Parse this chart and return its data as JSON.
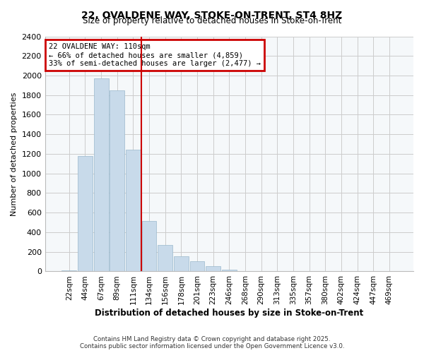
{
  "title": "22, OVALDENE WAY, STOKE-ON-TRENT, ST4 8HZ",
  "subtitle": "Size of property relative to detached houses in Stoke-on-Trent",
  "xlabel": "Distribution of detached houses by size in Stoke-on-Trent",
  "ylabel": "Number of detached properties",
  "bar_color": "#c8daea",
  "bar_edge_color": "#9ab8cc",
  "categories": [
    "22sqm",
    "44sqm",
    "67sqm",
    "89sqm",
    "111sqm",
    "134sqm",
    "156sqm",
    "178sqm",
    "201sqm",
    "223sqm",
    "246sqm",
    "268sqm",
    "290sqm",
    "313sqm",
    "335sqm",
    "357sqm",
    "380sqm",
    "402sqm",
    "424sqm",
    "447sqm",
    "469sqm"
  ],
  "values": [
    10,
    1175,
    1970,
    1850,
    1245,
    515,
    270,
    155,
    105,
    55,
    15,
    5,
    3,
    2,
    1,
    1,
    1,
    0,
    0,
    0,
    0
  ],
  "property_label": "22 OVALDENE WAY: 110sqm",
  "annotation_line1": "← 66% of detached houses are smaller (4,859)",
  "annotation_line2": "33% of semi-detached houses are larger (2,477) →",
  "vline_position": 4.5,
  "ylim": [
    0,
    2400
  ],
  "yticks": [
    0,
    200,
    400,
    600,
    800,
    1000,
    1200,
    1400,
    1600,
    1800,
    2000,
    2200,
    2400
  ],
  "footnote1": "Contains HM Land Registry data © Crown copyright and database right 2025.",
  "footnote2": "Contains public sector information licensed under the Open Government Licence v3.0.",
  "grid_color": "#cccccc",
  "vline_color": "#cc0000",
  "annotation_box_color": "#cc0000",
  "bg_color": "#ffffff",
  "plot_bg_color": "#f5f8fa"
}
